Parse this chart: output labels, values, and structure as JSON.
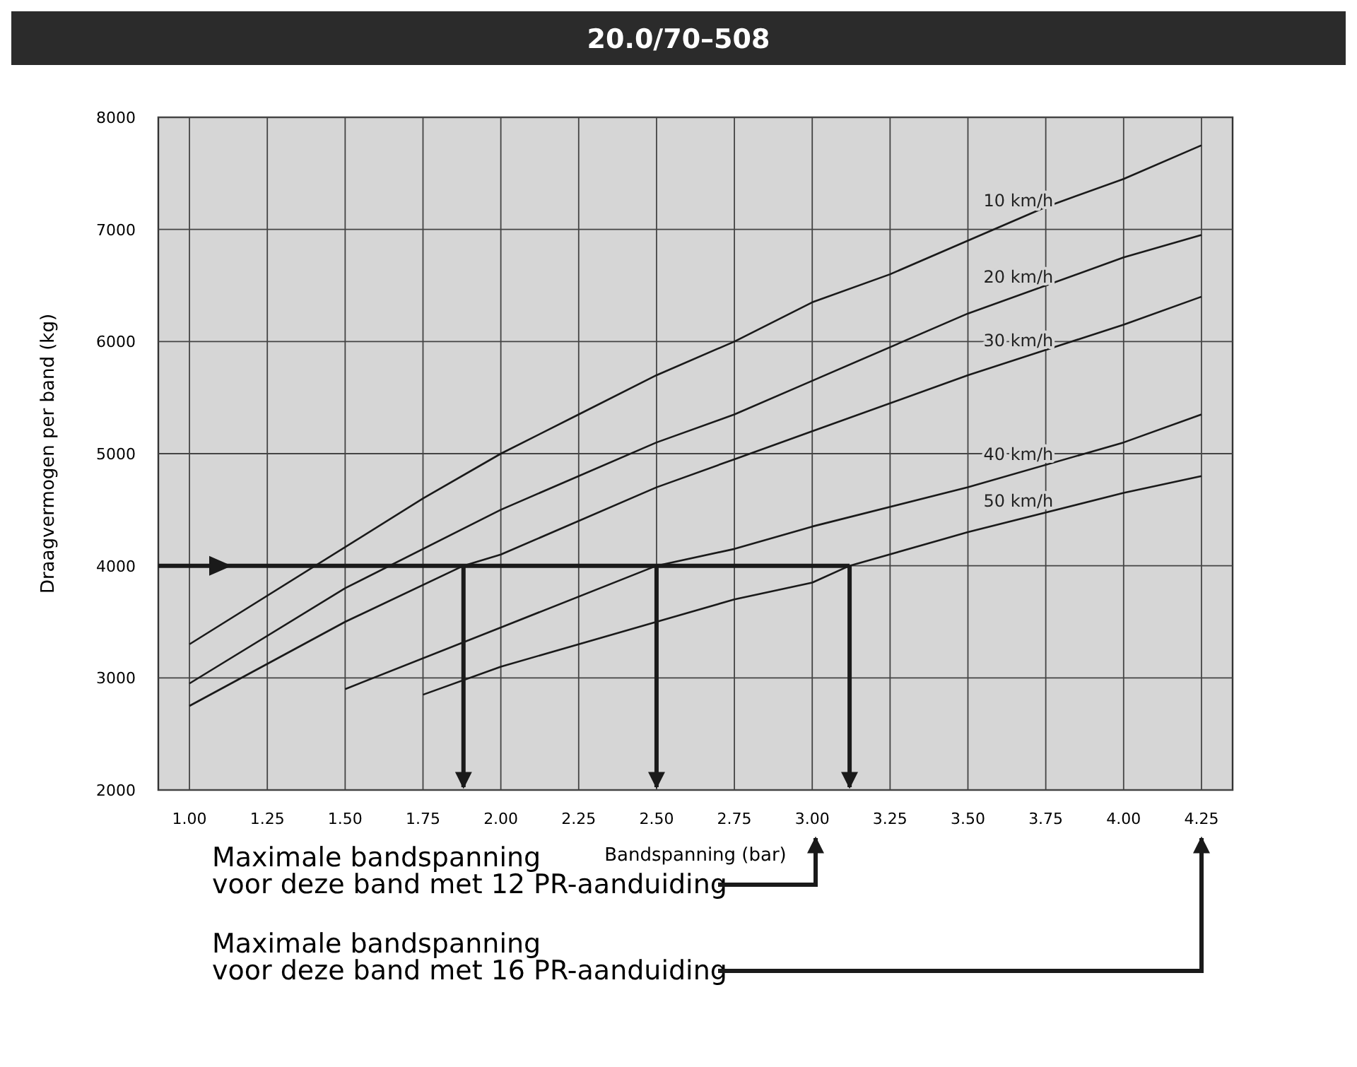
{
  "chart_data": {
    "type": "line",
    "title": "20.0/70–508",
    "xlabel": "Bandspanning (bar)",
    "ylabel": "Draagvermogen per band (kg)",
    "xlim": [
      0.9,
      4.35
    ],
    "xticks": [
      {
        "value": 1,
        "label": "1.00"
      },
      {
        "value": 1.25,
        "label": "1.25"
      },
      {
        "value": 1.5,
        "label": "1.50"
      },
      {
        "value": 1.75,
        "label": "1.75"
      },
      {
        "value": 2,
        "label": "2.00"
      },
      {
        "value": 2.25,
        "label": "2.25"
      },
      {
        "value": 2.5,
        "label": "2.50"
      },
      {
        "value": 2.75,
        "label": "2.75"
      },
      {
        "value": 3,
        "label": "3.00"
      },
      {
        "value": 3.25,
        "label": "3.25"
      },
      {
        "value": 3.5,
        "label": "3.50"
      },
      {
        "value": 3.75,
        "label": "3.75"
      },
      {
        "value": 4,
        "label": "4.00"
      },
      {
        "value": 4.25,
        "label": "4.25"
      }
    ],
    "ylim": [
      2000,
      8000
    ],
    "yticks": [
      2000,
      3000,
      4000,
      5000,
      6000,
      7000,
      8000
    ],
    "grid": true,
    "marker": "none",
    "line_style": "solid",
    "series": [
      {
        "name": "10 km/h",
        "color": "#1a1a1a",
        "x": [
          1,
          1.75,
          2,
          2.25,
          2.5,
          2.75,
          3,
          3.25,
          3.5,
          3.75,
          4,
          4.25
        ],
        "values": [
          3300,
          4600,
          5000,
          5350,
          5700,
          6000,
          6350,
          6600,
          6900,
          7200,
          7450,
          7750
        ]
      },
      {
        "name": "20 km/h",
        "color": "#1a1a1a",
        "x": [
          1,
          1.5,
          2,
          2.5,
          2.75,
          3,
          3.5,
          4,
          4.25
        ],
        "values": [
          2950,
          3800,
          4500,
          5100,
          5350,
          5650,
          6250,
          6750,
          6950
        ]
      },
      {
        "name": "30 km/h",
        "color": "#1a1a1a",
        "x": [
          1,
          1.5,
          1.88,
          2,
          2.5,
          2.75,
          3,
          3.5,
          4,
          4.25
        ],
        "values": [
          2750,
          3500,
          4000,
          4100,
          4700,
          4950,
          5200,
          5700,
          6150,
          6400
        ]
      },
      {
        "name": "40 km/h",
        "color": "#1a1a1a",
        "x": [
          1.5,
          2,
          2.5,
          2.75,
          3,
          3.5,
          4,
          4.25
        ],
        "values": [
          2900,
          3450,
          4000,
          4150,
          4350,
          4700,
          5100,
          5350
        ]
      },
      {
        "name": "50 km/h",
        "color": "#1a1a1a",
        "x": [
          1.75,
          2,
          2.5,
          2.75,
          3,
          3.12,
          3.5,
          4,
          4.25
        ],
        "values": [
          2850,
          3100,
          3500,
          3700,
          3850,
          4000,
          4300,
          4650,
          4800
        ]
      }
    ],
    "ref_lines": [
      {
        "axis": "y",
        "value": 4000
      },
      {
        "axis": "x",
        "value": 1.88
      },
      {
        "axis": "x",
        "value": 2.5
      },
      {
        "axis": "x",
        "value": 3.12
      }
    ],
    "annotations": [
      "Maximale bandspanning\nvoor deze band met 12 PR-aanduiding",
      "Maximale bandspanning\nvoor deze band met 16 PR-aanduiding"
    ]
  }
}
